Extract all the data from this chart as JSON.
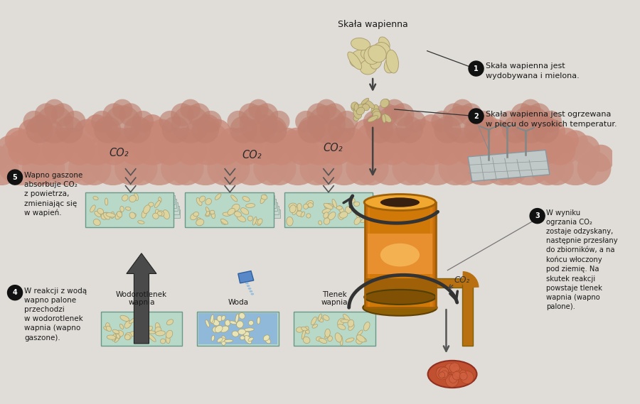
{
  "bg_color": "#e0ddd8",
  "step1_title": "Skała wapienna",
  "step1_text": "Skała wapienna jest\nwydobywana i mielona.",
  "step2_text": "Skała wapienna jest ogrzewana\nw piecu do wysokich temperatur.",
  "step3_text": "W wyniku\nogrzania CO₂\nzostaje odzyskany,\nnastępnie przesłany\ndo zbiorników, a na\nkońcu włoczony\npod ziemię. Na\nskutek reakcji\npowstaje tlenek\nwapnia (wapno\npalone).",
  "step4_text": "W reakcji z wodą\nwapno palone\nprzechodzi\nw wodorotlenek\nwapnia (wapno\ngaszone).",
  "step5_text": "Wapno gaszone\nabsorbuje CO₂\nz powietrza,\nzmieniając się\nw wapień.",
  "label_wodorotlenek": "Wodorotlenek\nwapnia",
  "label_woda": "Woda",
  "label_tlenek": "Tlenek\nwapnia",
  "cloud_pink": "#c8907a",
  "cloud_light": "#d4a898",
  "tray_top": "#c8ddd0",
  "tray_edge": "#6a9888",
  "tray_stack": "#b8ccc4",
  "lime_fill": "#d8ce9a",
  "lime_edge": "#a89a68",
  "furnace_main": "#d4860a",
  "furnace_dark": "#a06008",
  "furnace_light": "#f0a830",
  "furnace_glow": "#f8c060",
  "arrow_dark": "#383838",
  "text_col": "#1a1a1a",
  "circle_bg": "#111111",
  "circle_fg": "#ffffff"
}
